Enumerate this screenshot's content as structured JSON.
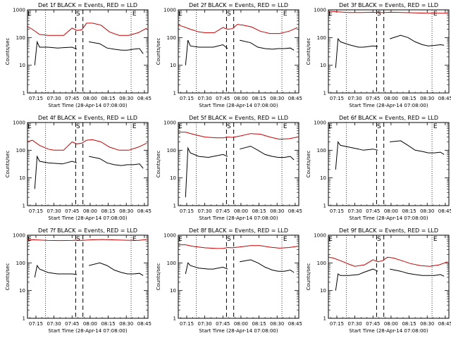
{
  "figure": {
    "xlabel": "Start Time (28-Apr-14 07:08:00)",
    "ylabel": "Counts/sec"
  },
  "chart_data": [
    {
      "type": "line",
      "title": "Det 1f BLACK = Events, RED = LLD",
      "xlabel": "Start Time (28-Apr-14 07:08:00)",
      "ylabel": "Counts/sec",
      "x_ticks": [
        "07:15",
        "07:30",
        "07:45",
        "08:00",
        "08:15",
        "08:30",
        "08:45"
      ],
      "y_ticks": [
        "1",
        "10",
        "100",
        "1000"
      ],
      "xlim": [
        "07:08",
        "08:48"
      ],
      "ylim": [
        1,
        1000
      ],
      "y_scale": "log",
      "markers": [
        {
          "label": "E",
          "time": "07:08"
        },
        {
          "label": "S",
          "time": "07:50"
        },
        {
          "label": "E",
          "time": "08:35"
        }
      ],
      "series": [
        {
          "color": "#000000",
          "x": [
            "07:14",
            "07:16",
            "07:18",
            "07:25",
            "07:33",
            "07:37",
            "07:45",
            "07:49",
            "07:53",
            "07:59",
            "08:08",
            "08:14",
            "08:20",
            "08:26",
            "08:31",
            "08:36",
            "08:41",
            "08:44"
          ],
          "values": [
            10,
            70,
            45,
            45,
            42,
            43,
            45,
            38,
            null,
            70,
            60,
            42,
            38,
            35,
            35,
            38,
            40,
            26
          ]
        },
        {
          "color": "#cc0000",
          "x": [
            "07:08",
            "07:12",
            "07:18",
            "07:25",
            "07:30",
            "07:38",
            "07:45",
            "07:49",
            "07:53",
            "07:57",
            "08:02",
            "08:09",
            "08:16",
            "08:24",
            "08:32",
            "08:40",
            "08:47"
          ],
          "values": [
            250,
            200,
            130,
            120,
            120,
            120,
            220,
            180,
            190,
            330,
            330,
            280,
            160,
            120,
            120,
            150,
            220
          ]
        }
      ]
    },
    {
      "type": "line",
      "title": "Det 2f BLACK = Events, RED = LLD",
      "xlabel": "Start Time (28-Apr-14 07:08:00)",
      "ylabel": "Counts/sec",
      "x_ticks": [
        "07:15",
        "07:30",
        "07:45",
        "08:00",
        "08:15",
        "08:30",
        "08:45"
      ],
      "y_ticks": [
        "1",
        "10",
        "100",
        "1000"
      ],
      "xlim": [
        "07:08",
        "08:48"
      ],
      "ylim": [
        1,
        1000
      ],
      "y_scale": "log",
      "markers": [
        {
          "label": "E",
          "time": "07:08"
        },
        {
          "label": "S",
          "time": "07:50"
        },
        {
          "label": "E",
          "time": "08:35"
        }
      ],
      "series": [
        {
          "color": "#000000",
          "x": [
            "07:14",
            "07:16",
            "07:18",
            "07:25",
            "07:33",
            "07:37",
            "07:45",
            "07:49",
            "07:53",
            "07:59",
            "08:08",
            "08:14",
            "08:20",
            "08:26",
            "08:31",
            "08:36",
            "08:41",
            "08:44"
          ],
          "values": [
            10,
            80,
            50,
            45,
            45,
            45,
            55,
            40,
            null,
            80,
            65,
            45,
            40,
            38,
            40,
            40,
            42,
            35
          ]
        },
        {
          "color": "#cc0000",
          "x": [
            "07:08",
            "07:12",
            "07:18",
            "07:25",
            "07:30",
            "07:38",
            "07:45",
            "07:49",
            "07:53",
            "07:57",
            "08:02",
            "08:09",
            "08:16",
            "08:24",
            "08:32",
            "08:40",
            "08:47"
          ],
          "values": [
            280,
            250,
            200,
            160,
            150,
            150,
            230,
            200,
            210,
            300,
            280,
            240,
            170,
            140,
            140,
            170,
            230
          ]
        }
      ]
    },
    {
      "type": "line",
      "title": "Det 3f BLACK = Events, RED = LLD",
      "xlabel": "Start Time (28-Apr-14 07:08:00)",
      "ylabel": "Counts/sec",
      "x_ticks": [
        "07:15",
        "07:30",
        "07:45",
        "08:00",
        "08:15",
        "08:30",
        "08:45"
      ],
      "y_ticks": [
        "1",
        "10",
        "100",
        "1000"
      ],
      "xlim": [
        "07:08",
        "08:48"
      ],
      "ylim": [
        1,
        1000
      ],
      "y_scale": "log",
      "markers": [
        {
          "label": "E",
          "time": "07:08"
        },
        {
          "label": "S",
          "time": "07:50"
        },
        {
          "label": "E",
          "time": "08:35"
        }
      ],
      "series": [
        {
          "color": "#000000",
          "x": [
            "07:14",
            "07:16",
            "07:18",
            "07:25",
            "07:33",
            "07:37",
            "07:45",
            "07:49",
            "07:53",
            "07:59",
            "08:08",
            "08:14",
            "08:20",
            "08:26",
            "08:31",
            "08:36",
            "08:41",
            "08:44"
          ],
          "values": [
            8,
            90,
            70,
            55,
            45,
            45,
            50,
            48,
            null,
            90,
            120,
            100,
            70,
            55,
            50,
            52,
            55,
            53
          ]
        },
        {
          "color": "#cc0000",
          "x": [
            "07:08",
            "07:15",
            "07:25",
            "07:35",
            "07:45",
            "07:49",
            "07:53",
            "08:00",
            "08:10",
            "08:20",
            "08:30",
            "08:40",
            "08:47"
          ],
          "values": [
            900,
            850,
            800,
            800,
            820,
            800,
            800,
            820,
            800,
            780,
            760,
            760,
            750
          ]
        }
      ]
    },
    {
      "type": "line",
      "title": "Det 4f BLACK = Events, RED = LLD",
      "xlabel": "Start Time (28-Apr-14 07:08:00)",
      "ylabel": "Counts/sec",
      "x_ticks": [
        "07:15",
        "07:30",
        "07:45",
        "08:00",
        "08:15",
        "08:30",
        "08:45"
      ],
      "y_ticks": [
        "1",
        "10",
        "100",
        "1000"
      ],
      "xlim": [
        "07:08",
        "08:48"
      ],
      "ylim": [
        1,
        1000
      ],
      "y_scale": "log",
      "markers": [
        {
          "label": "E",
          "time": "07:08"
        },
        {
          "label": "S",
          "time": "07:50"
        },
        {
          "label": "E",
          "time": "08:35"
        }
      ],
      "series": [
        {
          "color": "#000000",
          "x": [
            "07:14",
            "07:16",
            "07:18",
            "07:25",
            "07:33",
            "07:37",
            "07:45",
            "07:49",
            "07:53",
            "07:59",
            "08:08",
            "08:14",
            "08:20",
            "08:26",
            "08:31",
            "08:36",
            "08:41",
            "08:44"
          ],
          "values": [
            4,
            60,
            40,
            35,
            33,
            32,
            40,
            35,
            null,
            60,
            50,
            35,
            30,
            28,
            30,
            30,
            32,
            22
          ]
        },
        {
          "color": "#cc0000",
          "x": [
            "07:08",
            "07:12",
            "07:18",
            "07:25",
            "07:30",
            "07:38",
            "07:45",
            "07:49",
            "07:53",
            "07:57",
            "08:02",
            "08:09",
            "08:16",
            "08:24",
            "08:32",
            "08:40",
            "08:47"
          ],
          "values": [
            200,
            230,
            150,
            110,
            100,
            100,
            200,
            170,
            180,
            230,
            240,
            200,
            130,
            100,
            100,
            130,
            180
          ]
        }
      ]
    },
    {
      "type": "line",
      "title": "Det 5f BLACK = Events, RED = LLD",
      "xlabel": "Start Time (28-Apr-14 07:08:00)",
      "ylabel": "Counts/sec",
      "x_ticks": [
        "07:15",
        "07:30",
        "07:45",
        "08:00",
        "08:15",
        "08:30",
        "08:45"
      ],
      "y_ticks": [
        "1",
        "10",
        "100",
        "1000"
      ],
      "xlim": [
        "07:08",
        "08:48"
      ],
      "ylim": [
        1,
        1000
      ],
      "y_scale": "log",
      "markers": [
        {
          "label": "E",
          "time": "07:08"
        },
        {
          "label": "S",
          "time": "07:50"
        },
        {
          "label": "E",
          "time": "08:35"
        }
      ],
      "series": [
        {
          "color": "#000000",
          "x": [
            "07:14",
            "07:16",
            "07:18",
            "07:25",
            "07:33",
            "07:37",
            "07:45",
            "07:49",
            "07:53",
            "07:59",
            "08:08",
            "08:14",
            "08:20",
            "08:26",
            "08:31",
            "08:36",
            "08:41",
            "08:44"
          ],
          "values": [
            2,
            120,
            80,
            60,
            55,
            60,
            70,
            60,
            null,
            110,
            140,
            100,
            70,
            60,
            55,
            55,
            60,
            45
          ]
        },
        {
          "color": "#cc0000",
          "x": [
            "07:08",
            "07:14",
            "07:20",
            "07:30",
            "07:40",
            "07:45",
            "07:49",
            "07:53",
            "08:00",
            "08:08",
            "08:16",
            "08:24",
            "08:32",
            "08:40",
            "08:47"
          ],
          "values": [
            450,
            450,
            380,
            300,
            280,
            280,
            300,
            290,
            330,
            400,
            380,
            300,
            250,
            260,
            300
          ]
        }
      ]
    },
    {
      "type": "line",
      "title": "Det 6f BLACK = Events, RED = LLD",
      "xlabel": "Start Time (28-Apr-14 07:08:00)",
      "ylabel": "Counts/sec",
      "x_ticks": [
        "07:15",
        "07:30",
        "07:45",
        "08:00",
        "08:15",
        "08:30",
        "08:45"
      ],
      "y_ticks": [
        "1",
        "10",
        "100",
        "1000"
      ],
      "xlim": [
        "07:08",
        "08:48"
      ],
      "ylim": [
        1,
        1000
      ],
      "y_scale": "log",
      "markers": [
        {
          "label": "E",
          "time": "07:08"
        },
        {
          "label": "S",
          "time": "07:50"
        },
        {
          "label": "E",
          "time": "08:35"
        }
      ],
      "series": [
        {
          "color": "#000000",
          "x": [
            "07:14",
            "07:16",
            "07:18",
            "07:25",
            "07:33",
            "07:37",
            "07:45",
            "07:49",
            "07:53",
            "07:59",
            "08:08",
            "08:14",
            "08:20",
            "08:26",
            "08:31",
            "08:36",
            "08:41",
            "08:44"
          ],
          "values": [
            20,
            200,
            150,
            130,
            110,
            100,
            110,
            100,
            null,
            200,
            220,
            150,
            100,
            90,
            80,
            80,
            85,
            70
          ]
        }
      ]
    },
    {
      "type": "line",
      "title": "Det 7f BLACK = Events, RED = LLD",
      "xlabel": "Start Time (28-Apr-14 07:08:00)",
      "ylabel": "Counts/sec",
      "x_ticks": [
        "07:15",
        "07:30",
        "07:45",
        "08:00",
        "08:15",
        "08:30",
        "08:45"
      ],
      "y_ticks": [
        "1",
        "10",
        "100",
        "1000"
      ],
      "xlim": [
        "07:08",
        "08:48"
      ],
      "ylim": [
        1,
        1000
      ],
      "y_scale": "log",
      "markers": [
        {
          "label": "E",
          "time": "07:08"
        },
        {
          "label": "S",
          "time": "07:50"
        },
        {
          "label": "E",
          "time": "08:35"
        }
      ],
      "series": [
        {
          "color": "#000000",
          "x": [
            "07:14",
            "07:16",
            "07:18",
            "07:25",
            "07:33",
            "07:37",
            "07:45",
            "07:49",
            "07:53",
            "07:59",
            "08:08",
            "08:14",
            "08:20",
            "08:26",
            "08:31",
            "08:36",
            "08:41",
            "08:44"
          ],
          "values": [
            30,
            80,
            60,
            45,
            40,
            40,
            40,
            38,
            null,
            80,
            100,
            80,
            55,
            45,
            40,
            40,
            42,
            35
          ]
        },
        {
          "color": "#cc0000",
          "x": [
            "07:08",
            "07:15",
            "07:25",
            "07:35",
            "07:45",
            "07:49",
            "07:53",
            "08:00",
            "08:10",
            "08:20",
            "08:30",
            "08:40",
            "08:47"
          ],
          "values": [
            700,
            680,
            650,
            640,
            650,
            660,
            650,
            680,
            700,
            680,
            660,
            650,
            700
          ]
        }
      ]
    },
    {
      "type": "line",
      "title": "Det 8f BLACK = Events, RED = LLD",
      "xlabel": "Start Time (28-Apr-14 07:08:00)",
      "ylabel": "Counts/sec",
      "x_ticks": [
        "07:15",
        "07:30",
        "07:45",
        "08:00",
        "08:15",
        "08:30",
        "08:45"
      ],
      "y_ticks": [
        "1",
        "10",
        "100",
        "1000"
      ],
      "xlim": [
        "07:08",
        "08:48"
      ],
      "ylim": [
        1,
        1000
      ],
      "y_scale": "log",
      "markers": [
        {
          "label": "E",
          "time": "07:08"
        },
        {
          "label": "S",
          "time": "07:50"
        },
        {
          "label": "E",
          "time": "08:35"
        }
      ],
      "series": [
        {
          "color": "#000000",
          "x": [
            "07:14",
            "07:16",
            "07:18",
            "07:25",
            "07:33",
            "07:37",
            "07:45",
            "07:49",
            "07:53",
            "07:59",
            "08:08",
            "08:14",
            "08:20",
            "08:26",
            "08:31",
            "08:36",
            "08:41",
            "08:44"
          ],
          "values": [
            40,
            100,
            80,
            65,
            60,
            60,
            70,
            60,
            null,
            110,
            130,
            100,
            70,
            55,
            50,
            50,
            55,
            45
          ]
        },
        {
          "color": "#cc0000",
          "x": [
            "07:08",
            "07:14",
            "07:20",
            "07:30",
            "07:40",
            "07:45",
            "07:49",
            "07:53",
            "08:00",
            "08:08",
            "08:16",
            "08:24",
            "08:32",
            "08:40",
            "08:47"
          ],
          "values": [
            450,
            450,
            400,
            350,
            330,
            330,
            360,
            350,
            380,
            420,
            420,
            370,
            340,
            360,
            400
          ]
        }
      ]
    },
    {
      "type": "line",
      "title": "Det 9f BLACK = Events, RED = LLD",
      "xlabel": "Start Time (28-Apr-14 07:08:00)",
      "ylabel": "Counts/sec",
      "x_ticks": [
        "07:15",
        "07:30",
        "07:45",
        "08:00",
        "08:15",
        "08:30",
        "08:45"
      ],
      "y_ticks": [
        "1",
        "10",
        "100",
        "1000"
      ],
      "xlim": [
        "07:08",
        "08:48"
      ],
      "ylim": [
        1,
        1000
      ],
      "y_scale": "log",
      "markers": [
        {
          "label": "E",
          "time": "07:08"
        },
        {
          "label": "S",
          "time": "07:50"
        },
        {
          "label": "E",
          "time": "08:35"
        }
      ],
      "series": [
        {
          "color": "#000000",
          "x": [
            "07:14",
            "07:16",
            "07:18",
            "07:25",
            "07:33",
            "07:37",
            "07:45",
            "07:49",
            "07:53",
            "07:59",
            "08:08",
            "08:14",
            "08:20",
            "08:26",
            "08:31",
            "08:36",
            "08:41",
            "08:44"
          ],
          "values": [
            10,
            40,
            35,
            35,
            38,
            45,
            60,
            50,
            null,
            60,
            50,
            42,
            38,
            35,
            35,
            35,
            38,
            33
          ]
        },
        {
          "color": "#cc0000",
          "x": [
            "07:08",
            "07:12",
            "07:18",
            "07:25",
            "07:30",
            "07:38",
            "07:45",
            "07:49",
            "07:53",
            "07:57",
            "08:02",
            "08:09",
            "08:16",
            "08:24",
            "08:32",
            "08:40",
            "08:47"
          ],
          "values": [
            160,
            150,
            120,
            90,
            75,
            85,
            130,
            110,
            120,
            160,
            150,
            120,
            95,
            80,
            75,
            85,
            110
          ]
        }
      ]
    }
  ]
}
